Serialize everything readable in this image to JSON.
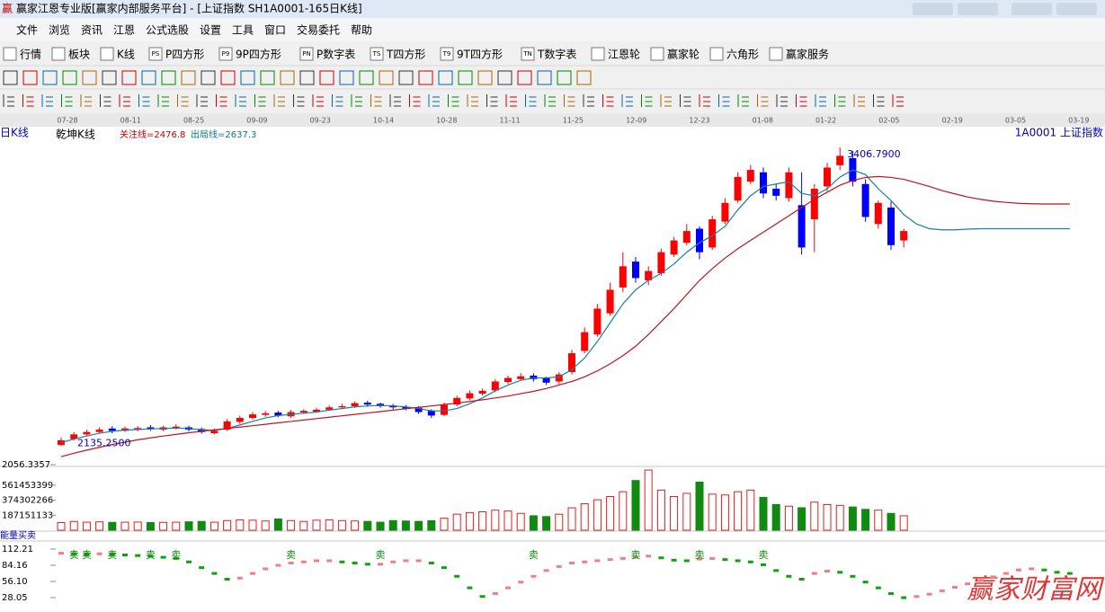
{
  "window": {
    "icon": "赢",
    "title": "赢家江恩专业版[赢家内部服务平台] - [上证指数  SH1A0001-165日K线]"
  },
  "menu": [
    "文件",
    "浏览",
    "资讯",
    "江恩",
    "公式选股",
    "设置",
    "工具",
    "窗口",
    "交易委托",
    "帮助"
  ],
  "toolbar": [
    {
      "label": "行情"
    },
    {
      "label": "板块"
    },
    {
      "label": "K线"
    },
    {
      "icon": "PS",
      "label": "P四方形"
    },
    {
      "icon": "P9",
      "label": "9P四方形"
    },
    {
      "icon": "PN",
      "label": "P数字表"
    },
    {
      "icon": "TS",
      "label": "T四方形"
    },
    {
      "icon": "T9",
      "label": "9T四方形"
    },
    {
      "icon": "TN",
      "label": "T数字表"
    },
    {
      "label": "江恩轮"
    },
    {
      "label": "赢家轮"
    },
    {
      "label": "六角形"
    },
    {
      "label": "赢家服务"
    }
  ],
  "date_axis": [
    "07-28",
    "08-11",
    "08-25",
    "09-09",
    "09-23",
    "10-14",
    "10-28",
    "11-11",
    "11-25",
    "12-09",
    "12-23",
    "01-08",
    "01-22",
    "02-05",
    "02-19",
    "03-05",
    "03-19"
  ],
  "watermark": "赢家财富网",
  "chart_data": [
    {
      "type": "candlestick",
      "period": "日K线",
      "title": "乾坤K线",
      "indicators": [
        "关注线=2476.8",
        "出局线=2637.3"
      ],
      "symbol": "1A0001 上证指数",
      "ylim": [
        2056.3357,
        3490
      ],
      "yticks": [
        2056.3357
      ],
      "up_color": "#ff0000",
      "down_color": "#0000ff",
      "annotations": [
        {
          "value": 2135.25,
          "label": "2135.2500"
        },
        {
          "value": 3406.79,
          "label": "3406.7900"
        }
      ],
      "open": [
        2140,
        2165,
        2185,
        2195,
        2210,
        2200,
        2205,
        2215,
        2205,
        2212,
        2215,
        2208,
        2190,
        2205,
        2238,
        2255,
        2268,
        2278,
        2262,
        2278,
        2282,
        2290,
        2300,
        2305,
        2320,
        2315,
        2308,
        2302,
        2298,
        2285,
        2268,
        2312,
        2338,
        2358,
        2372,
        2408,
        2420,
        2435,
        2425,
        2410,
        2450,
        2540,
        2610,
        2700,
        2810,
        2920,
        2840,
        2870,
        2950,
        3000,
        3060,
        2980,
        3090,
        3180,
        3260,
        3300,
        3230,
        3190,
        3160,
        3100,
        3240,
        3330,
        3360,
        3250,
        3080,
        3150,
        3010
      ],
      "close": [
        2160,
        2185,
        2195,
        2205,
        2200,
        2210,
        2212,
        2208,
        2215,
        2218,
        2205,
        2195,
        2200,
        2240,
        2255,
        2270,
        2275,
        2265,
        2280,
        2285,
        2290,
        2300,
        2305,
        2318,
        2312,
        2305,
        2300,
        2295,
        2280,
        2265,
        2310,
        2340,
        2360,
        2370,
        2410,
        2425,
        2432,
        2420,
        2405,
        2440,
        2530,
        2620,
        2720,
        2800,
        2900,
        2850,
        2880,
        2960,
        3010,
        3050,
        2960,
        3100,
        3170,
        3280,
        3310,
        3210,
        3200,
        3300,
        2980,
        3230,
        3320,
        3370,
        3260,
        3110,
        3170,
        2990,
        3050
      ],
      "high": [
        2172,
        2195,
        2205,
        2215,
        2220,
        2218,
        2220,
        2225,
        2222,
        2228,
        2222,
        2215,
        2210,
        2250,
        2265,
        2280,
        2285,
        2285,
        2290,
        2292,
        2298,
        2308,
        2315,
        2325,
        2328,
        2320,
        2315,
        2310,
        2305,
        2292,
        2320,
        2350,
        2372,
        2380,
        2420,
        2435,
        2445,
        2445,
        2430,
        2450,
        2545,
        2640,
        2740,
        2830,
        2960,
        2940,
        2900,
        2975,
        3025,
        3080,
        3070,
        3115,
        3190,
        3300,
        3330,
        3320,
        3250,
        3320,
        3300,
        3250,
        3340,
        3406.79,
        3390,
        3270,
        3180,
        3175,
        3060
      ],
      "low": [
        2135.25,
        2158,
        2178,
        2188,
        2190,
        2195,
        2198,
        2200,
        2198,
        2205,
        2198,
        2188,
        2185,
        2200,
        2230,
        2248,
        2260,
        2258,
        2255,
        2272,
        2276,
        2285,
        2292,
        2298,
        2302,
        2298,
        2292,
        2288,
        2272,
        2255,
        2262,
        2305,
        2330,
        2350,
        2365,
        2400,
        2415,
        2410,
        2395,
        2398,
        2440,
        2530,
        2600,
        2690,
        2790,
        2830,
        2820,
        2860,
        2940,
        2990,
        2930,
        2970,
        3080,
        3170,
        3250,
        3190,
        3180,
        3175,
        2950,
        2960,
        3220,
        3310,
        3240,
        3090,
        3060,
        2970,
        2980
      ],
      "series": [
        {
          "color": "#1a7fa0",
          "values": [
            2150,
            2165,
            2178,
            2190,
            2198,
            2203,
            2206,
            2208,
            2210,
            2212,
            2210,
            2205,
            2202,
            2210,
            2225,
            2240,
            2255,
            2265,
            2270,
            2275,
            2280,
            2288,
            2295,
            2302,
            2306,
            2308,
            2306,
            2302,
            2295,
            2285,
            2285,
            2295,
            2315,
            2340,
            2370,
            2395,
            2415,
            2425,
            2425,
            2430,
            2460,
            2510,
            2580,
            2660,
            2740,
            2800,
            2840,
            2870,
            2910,
            2960,
            3000,
            3030,
            3070,
            3140,
            3200,
            3240,
            3250,
            3260,
            3210,
            3200,
            3230,
            3280,
            3310,
            3290,
            3230,
            3180,
            3120,
            3080,
            3060,
            3055,
            3055,
            3058,
            3060,
            3060,
            3060,
            3060,
            3060,
            3060,
            3060,
            3060
          ]
        },
        {
          "color": "#c0141e",
          "values": [
            2090,
            2105,
            2118,
            2130,
            2142,
            2152,
            2162,
            2170,
            2178,
            2185,
            2192,
            2198,
            2204,
            2210,
            2216,
            2222,
            2228,
            2234,
            2240,
            2246,
            2252,
            2258,
            2264,
            2270,
            2276,
            2282,
            2288,
            2294,
            2300,
            2306,
            2312,
            2318,
            2325,
            2332,
            2340,
            2348,
            2358,
            2368,
            2380,
            2395,
            2410,
            2430,
            2455,
            2485,
            2520,
            2560,
            2610,
            2665,
            2720,
            2780,
            2840,
            2890,
            2935,
            2975,
            3010,
            3045,
            3080,
            3115,
            3150,
            3185,
            3215,
            3245,
            3265,
            3278,
            3282,
            3278,
            3270,
            3255,
            3240,
            3222,
            3208,
            3195,
            3185,
            3177,
            3172,
            3168,
            3166,
            3165,
            3165,
            3165
          ]
        }
      ]
    },
    {
      "type": "bar",
      "ylim": [
        0,
        762000000
      ],
      "yticks": [
        187151133,
        374302266,
        561453399
      ],
      "up_color": "#e0201e",
      "down_color": "#108a10",
      "values": [
        95000000,
        110000000,
        100000000,
        105000000,
        98000000,
        100000000,
        102000000,
        95000000,
        98000000,
        100000000,
        105000000,
        110000000,
        100000000,
        120000000,
        130000000,
        125000000,
        115000000,
        140000000,
        120000000,
        110000000,
        125000000,
        130000000,
        120000000,
        115000000,
        110000000,
        100000000,
        120000000,
        115000000,
        110000000,
        118000000,
        150000000,
        200000000,
        220000000,
        230000000,
        250000000,
        240000000,
        210000000,
        180000000,
        170000000,
        200000000,
        280000000,
        330000000,
        380000000,
        420000000,
        480000000,
        620000000,
        750000000,
        500000000,
        420000000,
        460000000,
        600000000,
        450000000,
        440000000,
        480000000,
        500000000,
        410000000,
        320000000,
        300000000,
        280000000,
        350000000,
        320000000,
        310000000,
        290000000,
        260000000,
        250000000,
        210000000,
        180000000
      ]
    },
    {
      "type": "line",
      "title": "能量买卖",
      "ylim": [
        10.9,
        123.1
      ],
      "yticks": [
        28.05,
        {
          "value": 56.1,
          "label": "56.10"
        },
        84.16,
        112.21
      ],
      "up_color": "#f08080",
      "down_color": "#10a010",
      "values": [
        105,
        104,
        103,
        104,
        103,
        102,
        101,
        100,
        98,
        96,
        90,
        80,
        70,
        60,
        62,
        70,
        78,
        84,
        88,
        90,
        92,
        92,
        90,
        88,
        86,
        86,
        90,
        92,
        92,
        88,
        80,
        65,
        45,
        30,
        35,
        45,
        55,
        65,
        75,
        82,
        88,
        90,
        92,
        94,
        96,
        98,
        100,
        97,
        93,
        92,
        95,
        96,
        94,
        92,
        90,
        85,
        75,
        65,
        60,
        70,
        74,
        72,
        65,
        55,
        45,
        35,
        28,
        30,
        34,
        40,
        46,
        52,
        58,
        64,
        70,
        76,
        78,
        76,
        72,
        70
      ],
      "signals": [
        null,
        "卖",
        "卖",
        null,
        "卖",
        null,
        null,
        "卖",
        null,
        "卖",
        null,
        null,
        null,
        null,
        null,
        null,
        null,
        null,
        "卖",
        null,
        null,
        null,
        null,
        null,
        null,
        "卖",
        null,
        null,
        null,
        null,
        null,
        null,
        null,
        null,
        null,
        null,
        null,
        "卖",
        null,
        null,
        null,
        null,
        null,
        null,
        null,
        "卖",
        null,
        null,
        null,
        null,
        "卖",
        null,
        null,
        null,
        null,
        "卖",
        null,
        null,
        null,
        null,
        null,
        null,
        null,
        null,
        null,
        null,
        null,
        null,
        null,
        null,
        null,
        null,
        null,
        null,
        null,
        null,
        null,
        null,
        null,
        null
      ]
    }
  ]
}
